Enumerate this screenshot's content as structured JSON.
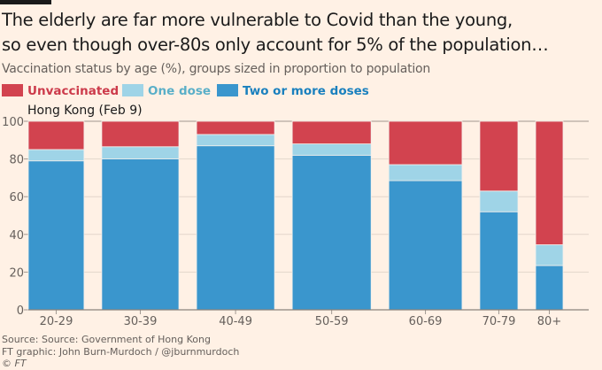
{
  "header": {
    "title_line1": "The elderly are far more vulnerable to Covid than the young,",
    "title_line2": "so even though over-80s only account for 5% of the population…",
    "subtitle": "Vaccination status by age (%), groups sized in proportion to population"
  },
  "legend": [
    {
      "label": "Unvaccinated",
      "color": "#D2434F",
      "text_color": "#CC3A4A"
    },
    {
      "label": "One dose",
      "color": "#9FD4E7",
      "text_color": "#5AAFC8"
    },
    {
      "label": "Two or more doses",
      "color": "#3A96CD",
      "text_color": "#1A80BE"
    }
  ],
  "chart_data": {
    "type": "bar",
    "subtype": "stacked-marimekko",
    "panel_title": "Hong Kong (Feb 9)",
    "categories": [
      "20-29",
      "30-39",
      "40-49",
      "50-59",
      "60-69",
      "70-79",
      "80+"
    ],
    "population_share_pct": [
      13.0,
      18.0,
      18.2,
      18.4,
      17.1,
      8.9,
      6.4
    ],
    "series": [
      {
        "name": "Two or more doses",
        "values": [
          79,
          80,
          87,
          82,
          68.5,
          52,
          23.5
        ]
      },
      {
        "name": "One dose",
        "values": [
          6,
          6.5,
          6,
          6,
          8.5,
          11,
          11
        ]
      },
      {
        "name": "Unvaccinated",
        "values": [
          15,
          13.5,
          7,
          12,
          23,
          37,
          65.5
        ]
      }
    ],
    "ylim": [
      0,
      100
    ],
    "yticks": [
      "0",
      "20",
      "40",
      "60",
      "80",
      "100"
    ],
    "grid": true,
    "legend_position": "top-left"
  },
  "footer": {
    "source": "Source: Source: Government of Hong Kong",
    "credit": "FT graphic: John Burn-Murdoch / @jburnmurdoch",
    "copyright": "© FT"
  }
}
